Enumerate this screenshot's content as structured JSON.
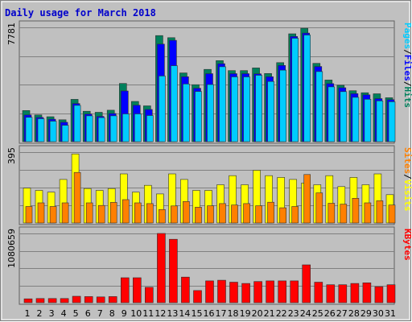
{
  "chart_data": {
    "type": "bar",
    "title": "Daily usage for March 2018",
    "categories": [
      "1",
      "2",
      "3",
      "4",
      "5",
      "6",
      "7",
      "8",
      "9",
      "10",
      "11",
      "12",
      "13",
      "14",
      "15",
      "16",
      "17",
      "18",
      "19",
      "20",
      "21",
      "22",
      "23",
      "24",
      "25",
      "26",
      "27",
      "28",
      "29",
      "30",
      "31"
    ],
    "weekend_categories": [
      "3",
      "4",
      "10",
      "11",
      "17",
      "18",
      "24",
      "25",
      "31"
    ],
    "colors": {
      "hits": "#00805c",
      "files": "#0000ff",
      "pages": "#00ccff",
      "visits": "#ffff00",
      "sites": "#ff8000",
      "kbytes": "#ff0000",
      "title": "#0000cc",
      "weekend_label": "#00805c",
      "plot_bg": "#c0c0c0",
      "frame": "#808080"
    },
    "panels": [
      {
        "name": "hits-files-pages",
        "ymax_label": "7781",
        "ylim": [
          0,
          7781
        ],
        "series_label": [
          "Pages",
          "Files",
          "Hits"
        ],
        "series": [
          {
            "name": "Hits",
            "color": "#00805c",
            "values": [
              2120,
              1820,
              1700,
              1490,
              2880,
              2070,
              2000,
              2140,
              3960,
              2740,
              2440,
              7220,
              7080,
              4680,
              3880,
              4920,
              5520,
              4840,
              4840,
              5020,
              4640,
              5380,
              7340,
              7720,
              5330,
              4200,
              3840,
              3470,
              3330,
              3260,
              2990
            ]
          },
          {
            "name": "Files",
            "color": "#0000ff",
            "values": [
              1820,
              1650,
              1530,
              1320,
              2600,
              1880,
              1720,
              1920,
              3450,
              2480,
              2190,
              6640,
              6900,
              4420,
              3640,
              4630,
              5310,
              4630,
              4630,
              4620,
              4420,
              5190,
              7160,
              7390,
              5120,
              3950,
              3670,
              3270,
              3190,
              2930,
              2860
            ]
          },
          {
            "name": "Pages",
            "color": "#00ccff",
            "values": [
              1660,
              1560,
              1400,
              1120,
              2470,
              1760,
              1640,
              1760,
              1890,
              1890,
              1780,
              4470,
              5170,
              3930,
              3420,
              3890,
              5100,
              4410,
              4410,
              4520,
              4100,
              4870,
              7040,
              7260,
              4770,
              3730,
              3410,
              3020,
              2890,
              2780,
              2720
            ]
          }
        ]
      },
      {
        "name": "visits-sites",
        "ymax_label": "395",
        "ylim": [
          0,
          395
        ],
        "series_label": [
          "Sites",
          "Visits"
        ],
        "series": [
          {
            "name": "Visits",
            "color": "#ffff00",
            "values": [
              195,
              182,
              172,
              243,
              385,
              192,
              182,
              192,
              274,
              172,
              210,
              162,
              274,
              243,
              182,
              182,
              213,
              264,
              213,
              294,
              264,
              254,
              243,
              223,
              213,
              264,
              203,
              254,
              213,
              274,
              158
            ]
          },
          {
            "name": "Sites",
            "color": "#ff8000",
            "values": [
              92,
              112,
              92,
              112,
              282,
              112,
              98,
              115,
              130,
              112,
              108,
              75,
              95,
              120,
              88,
              96,
              108,
              100,
              108,
              96,
              116,
              85,
              92,
              270,
              168,
              110,
              105,
              138,
              112,
              124,
              100
            ]
          }
        ]
      },
      {
        "name": "kbytes",
        "ymax_label": "1080659",
        "ylim": [
          0,
          1080659
        ],
        "series_label": [
          "KBytes"
        ],
        "series": [
          {
            "name": "KBytes",
            "color": "#ff0000",
            "values": [
              60000,
              65000,
              65000,
              65000,
              100000,
              95000,
              90000,
              95000,
              390000,
              390000,
              240000,
              1080659,
              990000,
              400000,
              190000,
              340000,
              350000,
              320000,
              300000,
              330000,
              340000,
              340000,
              340000,
              590000,
              320000,
              280000,
              280000,
              300000,
              310000,
              250000,
              280000
            ]
          }
        ]
      }
    ]
  }
}
